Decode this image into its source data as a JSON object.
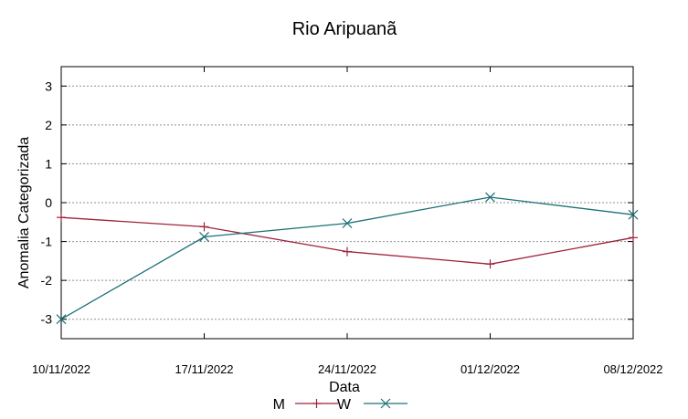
{
  "chart_data": {
    "type": "line",
    "title": "Rio Aripuanã",
    "xlabel": "Data",
    "ylabel": "Anomalia Categorizada",
    "categories": [
      "10/11/2022",
      "17/11/2022",
      "24/11/2022",
      "01/12/2022",
      "08/12/2022"
    ],
    "ylim": [
      -3.5,
      3.5
    ],
    "yticks": [
      3,
      2,
      1,
      0,
      -1,
      -2,
      -3
    ],
    "grid": true,
    "legend_position": "bottom",
    "series": [
      {
        "name": "M",
        "marker": "plus",
        "color": "#a0223a",
        "values": [
          -0.38,
          -0.62,
          -1.26,
          -1.58,
          -0.9
        ]
      },
      {
        "name": "W",
        "marker": "x",
        "color": "#1d7177",
        "values": [
          -3.0,
          -0.88,
          -0.53,
          0.14,
          -0.31
        ]
      }
    ]
  }
}
